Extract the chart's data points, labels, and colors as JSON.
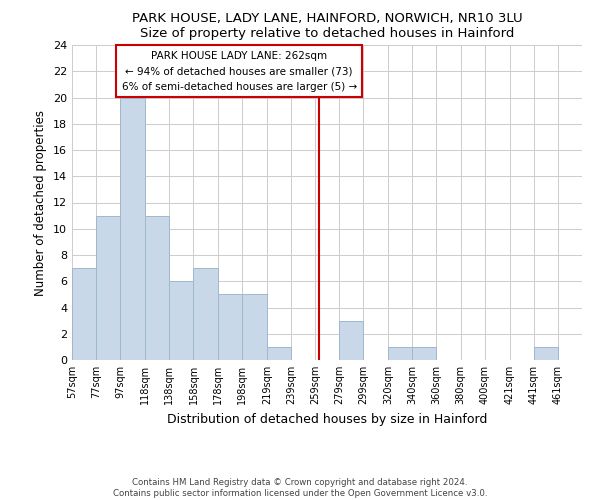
{
  "title": "PARK HOUSE, LADY LANE, HAINFORD, NORWICH, NR10 3LU",
  "subtitle": "Size of property relative to detached houses in Hainford",
  "xlabel": "Distribution of detached houses by size in Hainford",
  "ylabel": "Number of detached properties",
  "bin_labels": [
    "57sqm",
    "77sqm",
    "97sqm",
    "118sqm",
    "138sqm",
    "158sqm",
    "178sqm",
    "198sqm",
    "219sqm",
    "239sqm",
    "259sqm",
    "279sqm",
    "299sqm",
    "320sqm",
    "340sqm",
    "360sqm",
    "380sqm",
    "400sqm",
    "421sqm",
    "441sqm",
    "461sqm"
  ],
  "bin_edges": [
    57,
    77,
    97,
    118,
    138,
    158,
    178,
    198,
    219,
    239,
    259,
    279,
    299,
    320,
    340,
    360,
    380,
    400,
    421,
    441,
    461,
    481
  ],
  "counts": [
    7,
    11,
    20,
    11,
    6,
    7,
    5,
    5,
    1,
    0,
    0,
    3,
    0,
    1,
    1,
    0,
    0,
    0,
    0,
    1,
    0
  ],
  "bar_color": "#c8d8e8",
  "bar_edge_color": "#a0b8cc",
  "marker_value": 262,
  "marker_color": "#cc0000",
  "annotation_title": "PARK HOUSE LADY LANE: 262sqm",
  "annotation_line1": "← 94% of detached houses are smaller (73)",
  "annotation_line2": "6% of semi-detached houses are larger (5) →",
  "ylim": [
    0,
    24
  ],
  "yticks": [
    0,
    2,
    4,
    6,
    8,
    10,
    12,
    14,
    16,
    18,
    20,
    22,
    24
  ],
  "footer1": "Contains HM Land Registry data © Crown copyright and database right 2024.",
  "footer2": "Contains public sector information licensed under the Open Government Licence v3.0.",
  "bg_color": "#ffffff",
  "grid_color": "#cccccc"
}
